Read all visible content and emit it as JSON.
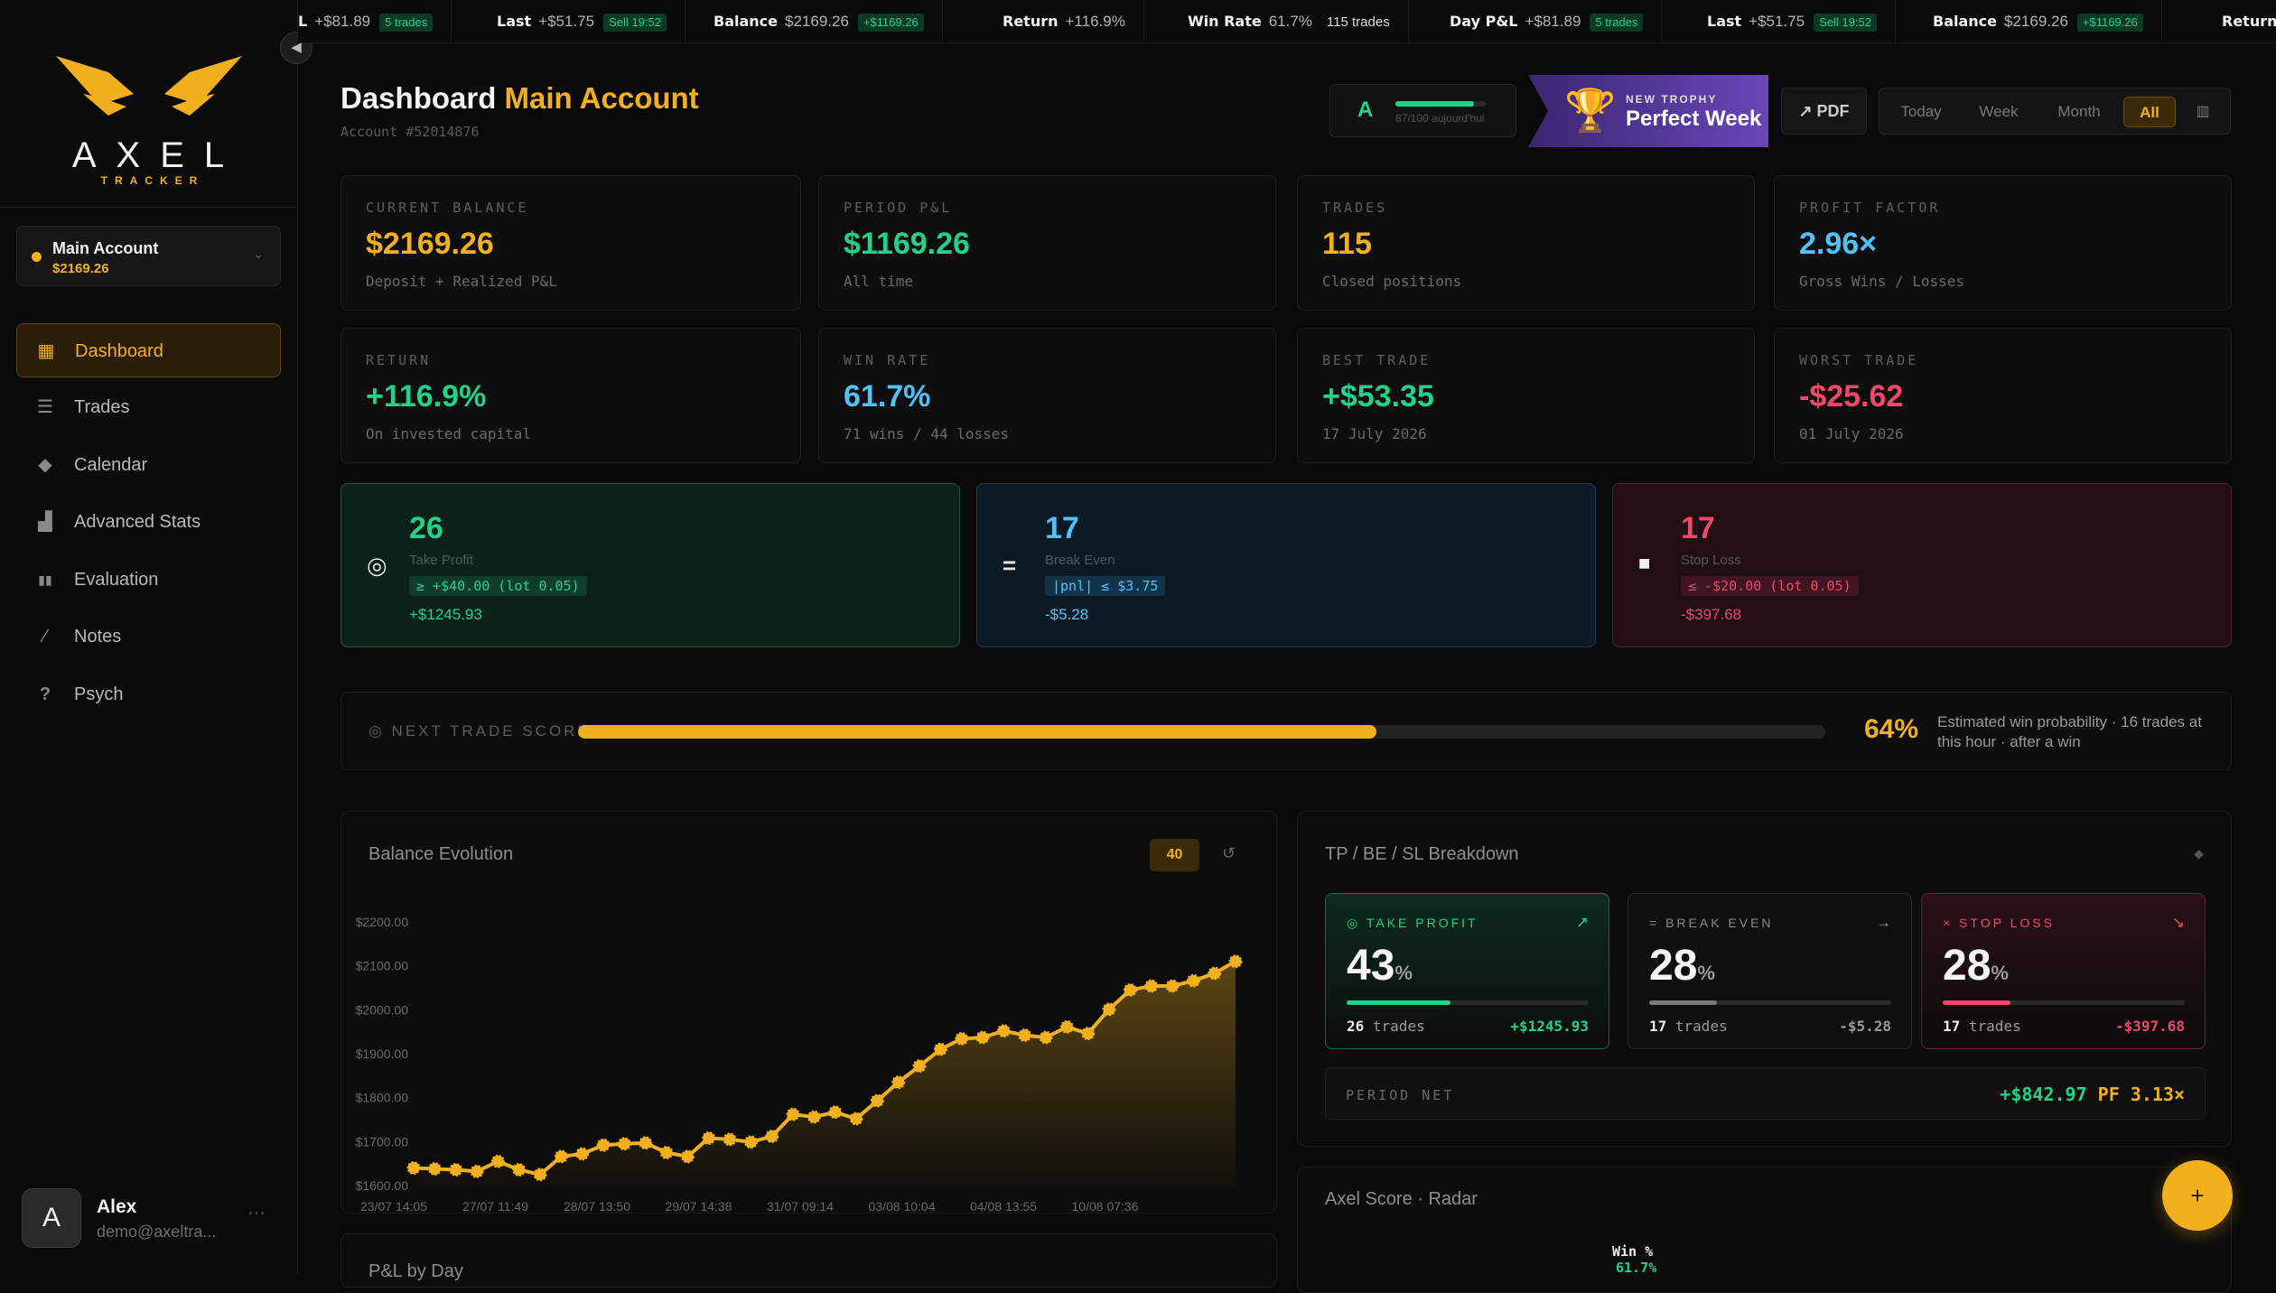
{
  "brand": {
    "word": "AXEL",
    "tag": "TRACKER"
  },
  "sidebar": {
    "account": {
      "name": "Main Account",
      "balance": "$2169.26"
    },
    "items": [
      {
        "label": "Dashboard",
        "icon": "grid-icon",
        "active": true
      },
      {
        "label": "Trades",
        "icon": "layers-icon"
      },
      {
        "label": "Calendar",
        "icon": "calendar-icon"
      },
      {
        "label": "Advanced Stats",
        "icon": "bar-chart-icon"
      },
      {
        "label": "Evaluation",
        "icon": "candles-icon"
      },
      {
        "label": "Notes",
        "icon": "pen-icon"
      },
      {
        "label": "Psych",
        "icon": "question-icon"
      }
    ],
    "user": {
      "initial": "A",
      "name": "Alex",
      "email": "demo@axeltra...",
      "more": "···"
    }
  },
  "ticker": [
    {
      "label": "L",
      "value": "+$81.89",
      "badge": "5 trades"
    },
    {
      "label": "Last",
      "value": "+$51.75",
      "badge": "Sell 19:52"
    },
    {
      "label": "Balance",
      "value": "$2169.26",
      "badge": "+$1169.26"
    },
    {
      "label": "Return",
      "value": "+116.9%"
    },
    {
      "label": "Win Rate",
      "value": "61.7%",
      "plain": "115 trades"
    },
    {
      "label": "Day P&L",
      "value": "+$81.89",
      "badge": "5 trades"
    },
    {
      "label": "Last",
      "value": "+$51.75",
      "badge": "Sell 19:52"
    },
    {
      "label": "Balance",
      "value": "$2169.26",
      "badge": "+$1169.26"
    },
    {
      "label": "Return",
      "value": ""
    }
  ],
  "header": {
    "title": "Dashboard",
    "title_accent": "Main Account",
    "account_id": "Account #52014876"
  },
  "grade": {
    "letter": "A",
    "progress": 0.87,
    "text": "87/100 aujourd'hui"
  },
  "trophy": {
    "kicker": "NEW TROPHY",
    "name": "Perfect Week"
  },
  "pdf_label": "↗ PDF",
  "ranges": [
    "Today",
    "Week",
    "Month",
    "All"
  ],
  "range_active": "All",
  "stats": [
    {
      "label": "CURRENT BALANCE",
      "value": "$2169.26",
      "sub": "Deposit + Realized P&L",
      "color": "#f2b01e"
    },
    {
      "label": "PERIOD P&L",
      "value": "$1169.26",
      "sub": "All time",
      "color": "#23d18b"
    },
    {
      "label": "TRADES",
      "value": "115",
      "sub": "Closed positions",
      "color": "#f2b01e"
    },
    {
      "label": "PROFIT FACTOR",
      "value": "2.96×",
      "sub": "Gross Wins / Losses",
      "color": "#4fc3f7"
    },
    {
      "label": "RETURN",
      "value": "+116.9%",
      "sub": "On invested capital",
      "color": "#23d18b"
    },
    {
      "label": "WIN RATE",
      "value": "61.7%",
      "sub": "71 wins / 44 losses",
      "color": "#4fc3f7"
    },
    {
      "label": "BEST TRADE",
      "value": "+$53.35",
      "sub": "17 July 2026",
      "color": "#23d18b"
    },
    {
      "label": "WORST TRADE",
      "value": "-$25.62",
      "sub": "01 July 2026",
      "color": "#f0476b"
    }
  ],
  "outcomes": [
    {
      "count": "26",
      "label": "Take Profit",
      "pill": "≥ +$40.00 (lot 0.05)",
      "total": "+$1245.93",
      "icon": "target-icon",
      "glyph": "◎"
    },
    {
      "count": "17",
      "label": "Break Even",
      "pill": "|pnl| ≤ $3.75",
      "total": "-$5.28",
      "icon": "equals-icon",
      "glyph": "="
    },
    {
      "count": "17",
      "label": "Stop Loss",
      "pill": "≤ -$20.00 (lot 0.05)",
      "total": "-$397.68",
      "icon": "square-icon",
      "glyph": "■"
    }
  ],
  "next_score": {
    "label": "◎ NEXT TRADE SCORE",
    "value_pct": 64,
    "value": "64%",
    "desc": "Estimated win probability · 16 trades at this hour · after a win"
  },
  "balance_panel": {
    "title": "Balance Evolution",
    "badge": "40",
    "reset": "↺"
  },
  "chart_data": {
    "type": "line",
    "title": "Balance Evolution",
    "ylim": [
      1600,
      2200
    ],
    "yticks": [
      "$2200.00",
      "$2100.00",
      "$2000.00",
      "$1900.00",
      "$1800.00",
      "$1700.00",
      "$1600.00"
    ],
    "xticks": [
      "23/07 14:05",
      "27/07 11:49",
      "28/07 13:50",
      "29/07 14:38",
      "31/07 09:14",
      "03/08 10:04",
      "04/08 13:55",
      "10/08 07:36"
    ],
    "values": [
      1640,
      1638,
      1636,
      1632,
      1655,
      1636,
      1625,
      1666,
      1672,
      1692,
      1695,
      1697,
      1675,
      1666,
      1708,
      1705,
      1699,
      1712,
      1762,
      1756,
      1767,
      1752,
      1793,
      1835,
      1872,
      1910,
      1934,
      1937,
      1952,
      1942,
      1937,
      1961,
      1946,
      2001,
      2045,
      2054,
      2054,
      2066,
      2083,
      2110
    ]
  },
  "breakdown": {
    "title": "TP / BE / SL Breakdown",
    "pin": "◆",
    "items": [
      {
        "label": "◎ TAKE PROFIT",
        "arrow": "↗",
        "pct": "43",
        "pct_frac": 0.43,
        "trades": "26",
        "trades_word": "trades",
        "pnl": "+$1245.93"
      },
      {
        "label": "= BREAK EVEN",
        "arrow": "→",
        "pct": "28",
        "pct_frac": 0.28,
        "trades": "17",
        "trades_word": "trades",
        "pnl": "-$5.28"
      },
      {
        "label": "× STOP LOSS",
        "arrow": "↘",
        "pct": "28",
        "pct_frac": 0.28,
        "trades": "17",
        "trades_word": "trades",
        "pnl": "-$397.68"
      }
    ],
    "net_label": "PERIOD NET",
    "net_value": "+$842.97",
    "pf": "PF 3.13×"
  },
  "radar": {
    "title": "Axel Score · Radar",
    "axis_label": "Win %",
    "axis_value": "61.7%"
  },
  "pnl_day": {
    "title": "P&L by Day"
  },
  "fab": "+"
}
